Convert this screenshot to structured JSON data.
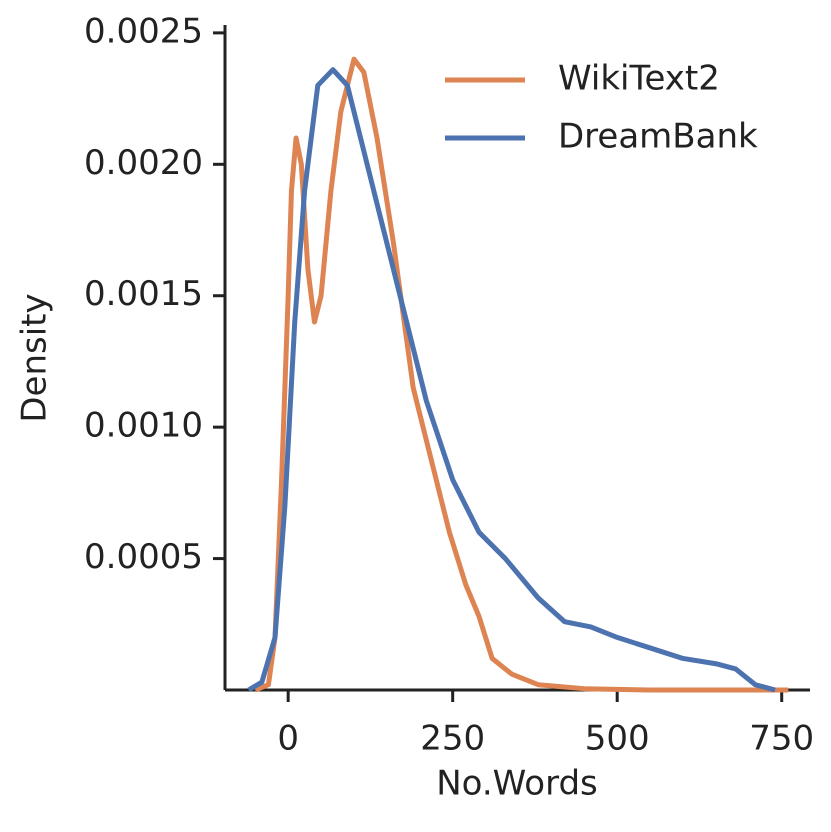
{
  "chart_data": {
    "type": "line",
    "xlabel": "No.Words",
    "ylabel": "Density",
    "xlim": [
      -96,
      793
    ],
    "ylim": [
      0,
      0.00253
    ],
    "xticks": [
      0,
      250,
      500,
      750
    ],
    "yticks": [
      0.0005,
      {
        "value": 0.001,
        "label": "0.0010"
      },
      0.0015,
      {
        "value": 0.002,
        "label": "0.0020"
      },
      0.0025
    ],
    "legend": "upper right",
    "series": [
      {
        "name": "WikiText2",
        "color": "#dd8452",
        "x": [
          -50,
          -30,
          -20,
          -10,
          0,
          5,
          12,
          20,
          30,
          40,
          50,
          65,
          80,
          100,
          115,
          135,
          160,
          190,
          215,
          245,
          270,
          290,
          310,
          340,
          380,
          450,
          550,
          700,
          760
        ],
        "values": [
          0,
          2e-05,
          0.0002,
          0.0008,
          0.0015,
          0.0019,
          0.0021,
          0.002,
          0.0016,
          0.0014,
          0.0015,
          0.0019,
          0.0022,
          0.0024,
          0.00235,
          0.0021,
          0.0017,
          0.00115,
          0.0009,
          0.0006,
          0.0004,
          0.00028,
          0.00012,
          6e-05,
          2e-05,
          5e-06,
          0,
          0,
          0
        ]
      },
      {
        "name": "DreamBank",
        "color": "#4c72b0",
        "x": [
          -60,
          -40,
          -20,
          -5,
          10,
          25,
          45,
          68,
          90,
          120,
          150,
          180,
          210,
          250,
          290,
          330,
          380,
          420,
          460,
          500,
          550,
          600,
          650,
          680,
          710,
          740
        ],
        "values": [
          0,
          3e-05,
          0.0002,
          0.0007,
          0.0014,
          0.0019,
          0.0023,
          0.00236,
          0.0023,
          0.002,
          0.0017,
          0.0014,
          0.0011,
          0.0008,
          0.0006,
          0.0005,
          0.00035,
          0.00026,
          0.00024,
          0.0002,
          0.00016,
          0.00012,
          0.0001,
          8e-05,
          2e-05,
          0
        ]
      }
    ]
  }
}
